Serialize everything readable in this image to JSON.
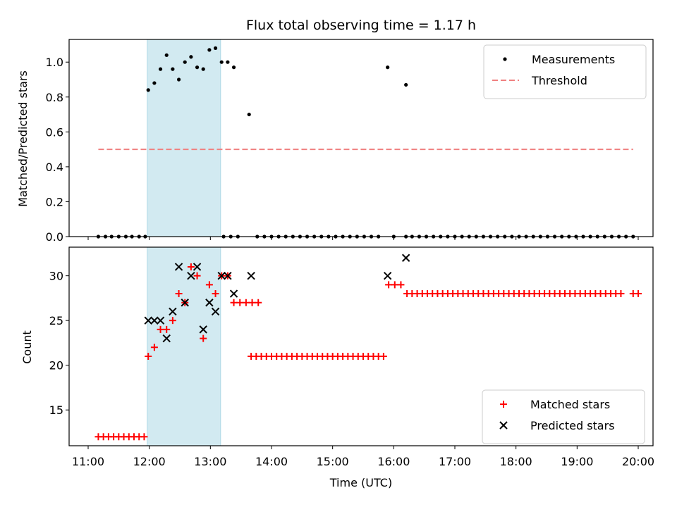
{
  "chart_data": [
    {
      "type": "scatter",
      "title": "Flux total observing time = 1.17 h",
      "xlabel": "",
      "ylabel": "Matched/Predicted stars",
      "xlim": [
        "11:00",
        "20:00"
      ],
      "ylim": [
        0,
        1.13
      ],
      "yticks": [
        "0.0",
        "0.2",
        "0.4",
        "0.6",
        "0.8",
        "1.0"
      ],
      "legend_position": "top-right",
      "highlight_span": [
        "11:58",
        "13:10"
      ],
      "highlight_color": "#add8e6",
      "series": [
        {
          "name": "Measurements",
          "style": "dot",
          "color": "#000000",
          "points": [
            [
              "11:10",
              0
            ],
            [
              "11:17",
              0
            ],
            [
              "11:23",
              0
            ],
            [
              "11:30",
              0
            ],
            [
              "11:37",
              0
            ],
            [
              "11:43",
              0
            ],
            [
              "11:50",
              0
            ],
            [
              "11:56",
              0
            ],
            [
              "11:59",
              0.84
            ],
            [
              "12:05",
              0.88
            ],
            [
              "12:11",
              0.96
            ],
            [
              "12:17",
              1.04
            ],
            [
              "12:23",
              0.96
            ],
            [
              "12:29",
              0.9
            ],
            [
              "12:35",
              1.0
            ],
            [
              "12:41",
              1.03
            ],
            [
              "12:47",
              0.97
            ],
            [
              "12:53",
              0.96
            ],
            [
              "12:59",
              1.07
            ],
            [
              "13:05",
              1.08
            ],
            [
              "13:11",
              1.0
            ],
            [
              "13:17",
              1.0
            ],
            [
              "13:23",
              0.97
            ],
            [
              "13:13",
              0
            ],
            [
              "13:20",
              0
            ],
            [
              "13:27",
              0
            ],
            [
              "13:38",
              0.7
            ],
            [
              "13:46",
              0
            ],
            [
              "13:53",
              0
            ],
            [
              "14:00",
              0
            ],
            [
              "14:07",
              0
            ],
            [
              "14:14",
              0
            ],
            [
              "14:21",
              0
            ],
            [
              "14:28",
              0
            ],
            [
              "14:35",
              0
            ],
            [
              "14:42",
              0
            ],
            [
              "14:49",
              0
            ],
            [
              "14:56",
              0
            ],
            [
              "15:03",
              0
            ],
            [
              "15:10",
              0
            ],
            [
              "15:17",
              0
            ],
            [
              "15:24",
              0
            ],
            [
              "15:31",
              0
            ],
            [
              "15:38",
              0
            ],
            [
              "15:45",
              0
            ],
            [
              "15:54",
              0.97
            ],
            [
              "16:00",
              0
            ],
            [
              "16:12",
              0.87
            ],
            [
              "16:12",
              0
            ],
            [
              "16:18",
              0
            ],
            [
              "16:25",
              0
            ],
            [
              "16:32",
              0
            ],
            [
              "16:39",
              0
            ],
            [
              "16:46",
              0
            ],
            [
              "16:53",
              0
            ],
            [
              "17:00",
              0
            ],
            [
              "17:07",
              0
            ],
            [
              "17:14",
              0
            ],
            [
              "17:21",
              0
            ],
            [
              "17:28",
              0
            ],
            [
              "17:35",
              0
            ],
            [
              "17:42",
              0
            ],
            [
              "17:49",
              0
            ],
            [
              "17:56",
              0
            ],
            [
              "18:03",
              0
            ],
            [
              "18:10",
              0
            ],
            [
              "18:17",
              0
            ],
            [
              "18:24",
              0
            ],
            [
              "18:31",
              0
            ],
            [
              "18:38",
              0
            ],
            [
              "18:45",
              0
            ],
            [
              "18:52",
              0
            ],
            [
              "18:59",
              0
            ],
            [
              "19:06",
              0
            ],
            [
              "19:13",
              0
            ],
            [
              "19:20",
              0
            ],
            [
              "19:27",
              0
            ],
            [
              "19:34",
              0
            ],
            [
              "19:41",
              0
            ],
            [
              "19:48",
              0
            ],
            [
              "19:55",
              0
            ]
          ]
        },
        {
          "name": "Threshold",
          "style": "dashed-line",
          "color": "#f08080",
          "points": [
            [
              "11:10",
              0.5
            ],
            [
              "19:55",
              0.5
            ]
          ]
        }
      ]
    },
    {
      "type": "scatter",
      "title": "",
      "xlabel": "Time (UTC)",
      "ylabel": "Count",
      "xlim": [
        "11:00",
        "20:00"
      ],
      "ylim": [
        11,
        33.2
      ],
      "yticks": [
        "15",
        "20",
        "25",
        "30"
      ],
      "xticks": [
        "11:00",
        "12:00",
        "13:00",
        "14:00",
        "15:00",
        "16:00",
        "17:00",
        "18:00",
        "19:00",
        "20:00"
      ],
      "legend_position": "bottom-right",
      "highlight_span": [
        "11:58",
        "13:10"
      ],
      "highlight_color": "#add8e6",
      "series": [
        {
          "name": "Matched stars",
          "style": "plus",
          "color": "#ff0000",
          "points": [
            [
              "11:10",
              12
            ],
            [
              "11:15",
              12
            ],
            [
              "11:20",
              12
            ],
            [
              "11:25",
              12
            ],
            [
              "11:30",
              12
            ],
            [
              "11:35",
              12
            ],
            [
              "11:40",
              12
            ],
            [
              "11:45",
              12
            ],
            [
              "11:50",
              12
            ],
            [
              "11:55",
              12
            ],
            [
              "11:59",
              21
            ],
            [
              "12:05",
              22
            ],
            [
              "12:11",
              24
            ],
            [
              "12:17",
              24
            ],
            [
              "12:23",
              25
            ],
            [
              "12:29",
              28
            ],
            [
              "12:35",
              27
            ],
            [
              "12:41",
              31
            ],
            [
              "12:47",
              30
            ],
            [
              "12:53",
              23
            ],
            [
              "12:59",
              29
            ],
            [
              "13:05",
              28
            ],
            [
              "13:11",
              30
            ],
            [
              "13:17",
              30
            ],
            [
              "13:23",
              27
            ],
            [
              "13:29",
              27
            ],
            [
              "13:35",
              27
            ],
            [
              "13:41",
              27
            ],
            [
              "13:47",
              27
            ],
            [
              "13:40",
              21
            ],
            [
              "13:45",
              21
            ],
            [
              "13:50",
              21
            ],
            [
              "13:55",
              21
            ],
            [
              "14:00",
              21
            ],
            [
              "14:05",
              21
            ],
            [
              "14:10",
              21
            ],
            [
              "14:15",
              21
            ],
            [
              "14:20",
              21
            ],
            [
              "14:25",
              21
            ],
            [
              "14:30",
              21
            ],
            [
              "14:35",
              21
            ],
            [
              "14:40",
              21
            ],
            [
              "14:45",
              21
            ],
            [
              "14:50",
              21
            ],
            [
              "14:55",
              21
            ],
            [
              "15:00",
              21
            ],
            [
              "15:05",
              21
            ],
            [
              "15:10",
              21
            ],
            [
              "15:15",
              21
            ],
            [
              "15:20",
              21
            ],
            [
              "15:25",
              21
            ],
            [
              "15:30",
              21
            ],
            [
              "15:35",
              21
            ],
            [
              "15:40",
              21
            ],
            [
              "15:45",
              21
            ],
            [
              "15:50",
              21
            ],
            [
              "15:55",
              29
            ],
            [
              "16:01",
              29
            ],
            [
              "16:07",
              29
            ],
            [
              "16:13",
              28
            ],
            [
              "16:18",
              28
            ],
            [
              "16:23",
              28
            ],
            [
              "16:28",
              28
            ],
            [
              "16:33",
              28
            ],
            [
              "16:38",
              28
            ],
            [
              "16:43",
              28
            ],
            [
              "16:48",
              28
            ],
            [
              "16:53",
              28
            ],
            [
              "16:58",
              28
            ],
            [
              "17:03",
              28
            ],
            [
              "17:08",
              28
            ],
            [
              "17:13",
              28
            ],
            [
              "17:18",
              28
            ],
            [
              "17:23",
              28
            ],
            [
              "17:28",
              28
            ],
            [
              "17:33",
              28
            ],
            [
              "17:38",
              28
            ],
            [
              "17:43",
              28
            ],
            [
              "17:48",
              28
            ],
            [
              "17:53",
              28
            ],
            [
              "17:58",
              28
            ],
            [
              "18:03",
              28
            ],
            [
              "18:08",
              28
            ],
            [
              "18:13",
              28
            ],
            [
              "18:18",
              28
            ],
            [
              "18:23",
              28
            ],
            [
              "18:28",
              28
            ],
            [
              "18:33",
              28
            ],
            [
              "18:38",
              28
            ],
            [
              "18:43",
              28
            ],
            [
              "18:48",
              28
            ],
            [
              "18:53",
              28
            ],
            [
              "18:58",
              28
            ],
            [
              "19:03",
              28
            ],
            [
              "19:08",
              28
            ],
            [
              "19:13",
              28
            ],
            [
              "19:18",
              28
            ],
            [
              "19:23",
              28
            ],
            [
              "19:28",
              28
            ],
            [
              "19:33",
              28
            ],
            [
              "19:38",
              28
            ],
            [
              "19:43",
              28
            ],
            [
              "19:55",
              28
            ],
            [
              "20:00",
              28
            ]
          ]
        },
        {
          "name": "Predicted stars",
          "style": "x",
          "color": "#000000",
          "points": [
            [
              "11:59",
              25
            ],
            [
              "12:05",
              25
            ],
            [
              "12:11",
              25
            ],
            [
              "12:17",
              23
            ],
            [
              "12:23",
              26
            ],
            [
              "12:29",
              31
            ],
            [
              "12:35",
              27
            ],
            [
              "12:41",
              30
            ],
            [
              "12:47",
              31
            ],
            [
              "12:53",
              24
            ],
            [
              "12:59",
              27
            ],
            [
              "13:05",
              26
            ],
            [
              "13:11",
              30
            ],
            [
              "13:17",
              30
            ],
            [
              "13:23",
              28
            ],
            [
              "13:40",
              30
            ],
            [
              "15:54",
              30
            ],
            [
              "16:12",
              32
            ]
          ]
        }
      ]
    }
  ]
}
